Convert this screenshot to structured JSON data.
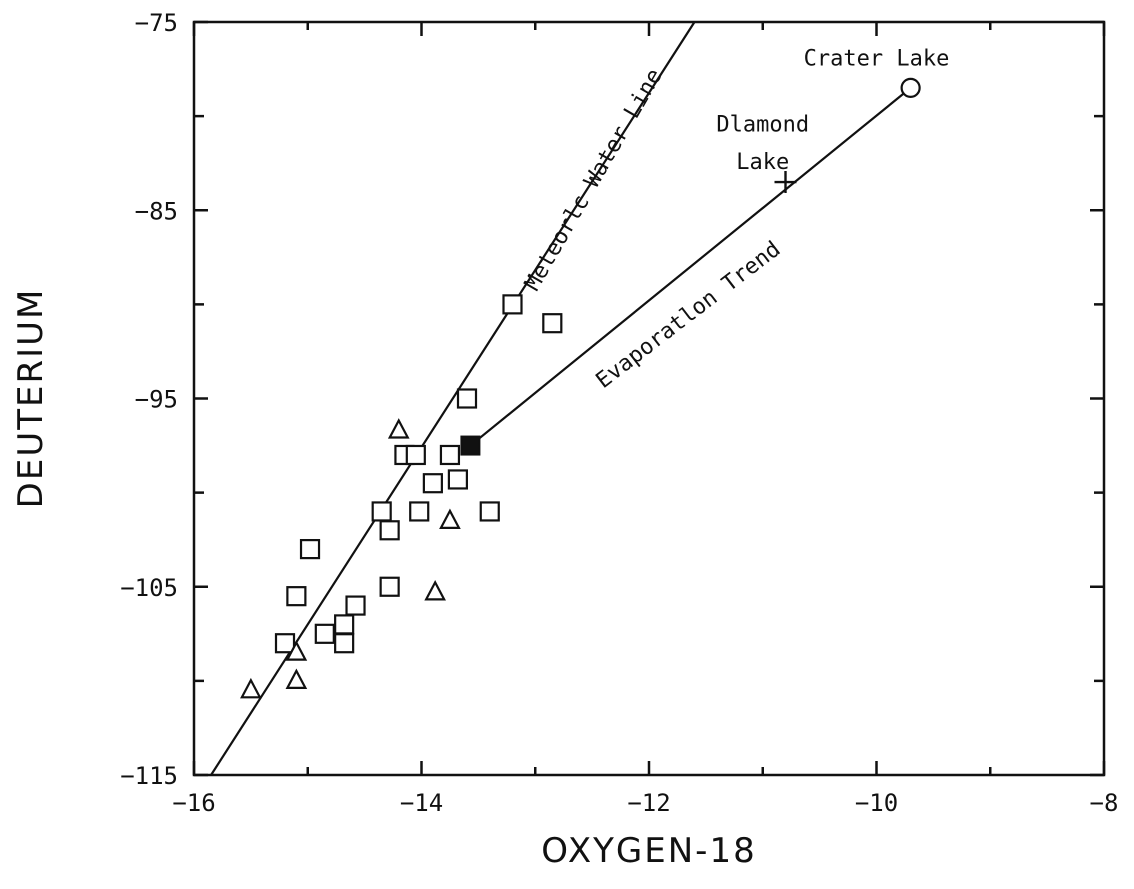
{
  "chart_data": {
    "type": "scatter",
    "title": "",
    "xlabel": "OXYGEN-18",
    "ylabel": "DEUTERIUM",
    "xlim": [
      -16,
      -8
    ],
    "ylim": [
      -115,
      -75
    ],
    "grid": false,
    "x_ticks": [
      -16,
      -14,
      -12,
      -10,
      -8
    ],
    "y_ticks": [
      -115,
      -105,
      -95,
      -85,
      -75
    ],
    "series": [
      {
        "marker": "square",
        "points": [
          {
            "x": -13.2,
            "y": -90
          },
          {
            "x": -12.85,
            "y": -91
          },
          {
            "x": -13.6,
            "y": -95
          },
          {
            "x": -13.75,
            "y": -98
          },
          {
            "x": -14.15,
            "y": -98
          },
          {
            "x": -14.05,
            "y": -98
          },
          {
            "x": -13.9,
            "y": -99.5
          },
          {
            "x": -13.68,
            "y": -99.3
          },
          {
            "x": -14.35,
            "y": -101
          },
          {
            "x": -14.02,
            "y": -101
          },
          {
            "x": -13.4,
            "y": -101
          },
          {
            "x": -14.28,
            "y": -102
          },
          {
            "x": -14.98,
            "y": -103
          },
          {
            "x": -14.28,
            "y": -105
          },
          {
            "x": -15.1,
            "y": -105.5
          },
          {
            "x": -14.58,
            "y": -106
          },
          {
            "x": -14.68,
            "y": -107
          },
          {
            "x": -14.85,
            "y": -107.5
          },
          {
            "x": -15.2,
            "y": -108
          },
          {
            "x": -14.68,
            "y": -108
          }
        ]
      },
      {
        "marker": "triangle",
        "points": [
          {
            "x": -14.2,
            "y": -96.7
          },
          {
            "x": -13.75,
            "y": -101.5
          },
          {
            "x": -13.88,
            "y": -105.3
          },
          {
            "x": -15.1,
            "y": -108.5
          },
          {
            "x": -15.1,
            "y": -110
          },
          {
            "x": -15.5,
            "y": -110.5
          }
        ]
      },
      {
        "marker": "filled-square",
        "points": [
          {
            "x": -13.57,
            "y": -97.5
          }
        ]
      },
      {
        "marker": "plus",
        "points": [
          {
            "x": -10.8,
            "y": -83.5
          }
        ]
      },
      {
        "marker": "circle",
        "points": [
          {
            "x": -9.7,
            "y": -78.5
          }
        ]
      }
    ],
    "lines": [
      {
        "name": "Meteoric Water Line",
        "from": {
          "x": -15.85,
          "y": -115
        },
        "to": {
          "x": -11.6,
          "y": -75
        }
      },
      {
        "name": "Evaporation Trend",
        "from": {
          "x": -13.57,
          "y": -97.5
        },
        "to": {
          "x": -9.7,
          "y": -78.5
        }
      }
    ],
    "annotations": [
      {
        "id": "crater",
        "text": "Crater Lake",
        "x": -10.0,
        "y": -77.0,
        "angle": 0
      },
      {
        "id": "diamond1",
        "text": "Dlamond",
        "x": -11.0,
        "y": -80.5,
        "angle": 0
      },
      {
        "id": "diamond2",
        "text": "Lake",
        "x": -11.0,
        "y": -82.5,
        "angle": 0
      },
      {
        "id": "mwl",
        "text": "Meteorlc Water Line",
        "x": -12.48,
        "y": -83.4,
        "angle": -60
      },
      {
        "id": "evap",
        "text": "Evaporatlon Trend",
        "x": -11.65,
        "y": -90.6,
        "angle": -37.5
      }
    ]
  }
}
